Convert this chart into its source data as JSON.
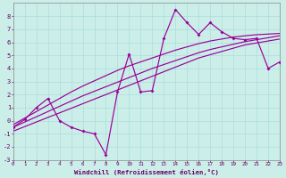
{
  "background_color": "#cceee8",
  "grid_color": "#aadddd",
  "line_color": "#990099",
  "xlabel": "Windchill (Refroidissement éolien,°C)",
  "xlim": [
    0,
    23
  ],
  "ylim": [
    -3,
    9
  ],
  "xticks": [
    0,
    1,
    2,
    3,
    4,
    5,
    6,
    7,
    8,
    9,
    10,
    11,
    12,
    13,
    14,
    15,
    16,
    17,
    18,
    19,
    20,
    21,
    22,
    23
  ],
  "yticks": [
    -3,
    -2,
    -1,
    0,
    1,
    2,
    3,
    4,
    5,
    6,
    7,
    8
  ],
  "line1_x": [
    0,
    1,
    2,
    3,
    4,
    5,
    6,
    7,
    8,
    9,
    10,
    11,
    12,
    13,
    14,
    15,
    16,
    17,
    18,
    19,
    20,
    21,
    22,
    23
  ],
  "line1_y": [
    -0.8,
    -0.45,
    -0.1,
    0.25,
    0.6,
    0.95,
    1.3,
    1.65,
    2.0,
    2.35,
    2.7,
    3.05,
    3.4,
    3.75,
    4.1,
    4.45,
    4.8,
    5.05,
    5.3,
    5.55,
    5.8,
    5.95,
    6.1,
    6.25
  ],
  "line2_x": [
    0,
    1,
    2,
    3,
    4,
    5,
    6,
    7,
    8,
    9,
    10,
    11,
    12,
    13,
    14,
    15,
    16,
    17,
    18,
    19,
    20,
    21,
    22,
    23
  ],
  "line2_y": [
    -0.5,
    -0.1,
    0.3,
    0.7,
    1.1,
    1.5,
    1.9,
    2.25,
    2.6,
    2.95,
    3.3,
    3.65,
    4.0,
    4.3,
    4.6,
    4.9,
    5.2,
    5.45,
    5.65,
    5.85,
    6.05,
    6.2,
    6.35,
    6.5
  ],
  "line3_x": [
    0,
    1,
    2,
    3,
    4,
    5,
    6,
    7,
    8,
    9,
    10,
    11,
    12,
    13,
    14,
    15,
    16,
    17,
    18,
    19,
    20,
    21,
    22,
    23
  ],
  "line3_y": [
    -0.3,
    0.2,
    0.7,
    1.2,
    1.7,
    2.2,
    2.65,
    3.05,
    3.45,
    3.85,
    4.2,
    4.5,
    4.8,
    5.1,
    5.4,
    5.65,
    5.9,
    6.1,
    6.25,
    6.4,
    6.5,
    6.58,
    6.63,
    6.68
  ],
  "zigzag_x": [
    0,
    1,
    2,
    3,
    4,
    5,
    6,
    7,
    8,
    9,
    10,
    11,
    12,
    13,
    14,
    15,
    16,
    17,
    18,
    19,
    20,
    21,
    22,
    23
  ],
  "zigzag_y": [
    -0.5,
    0.1,
    1.0,
    1.7,
    0.0,
    -0.5,
    -0.8,
    -1.0,
    -2.6,
    2.2,
    5.1,
    2.2,
    2.3,
    6.3,
    8.5,
    7.5,
    6.6,
    7.5,
    6.8,
    6.3,
    6.2,
    6.3,
    4.0,
    4.5
  ]
}
